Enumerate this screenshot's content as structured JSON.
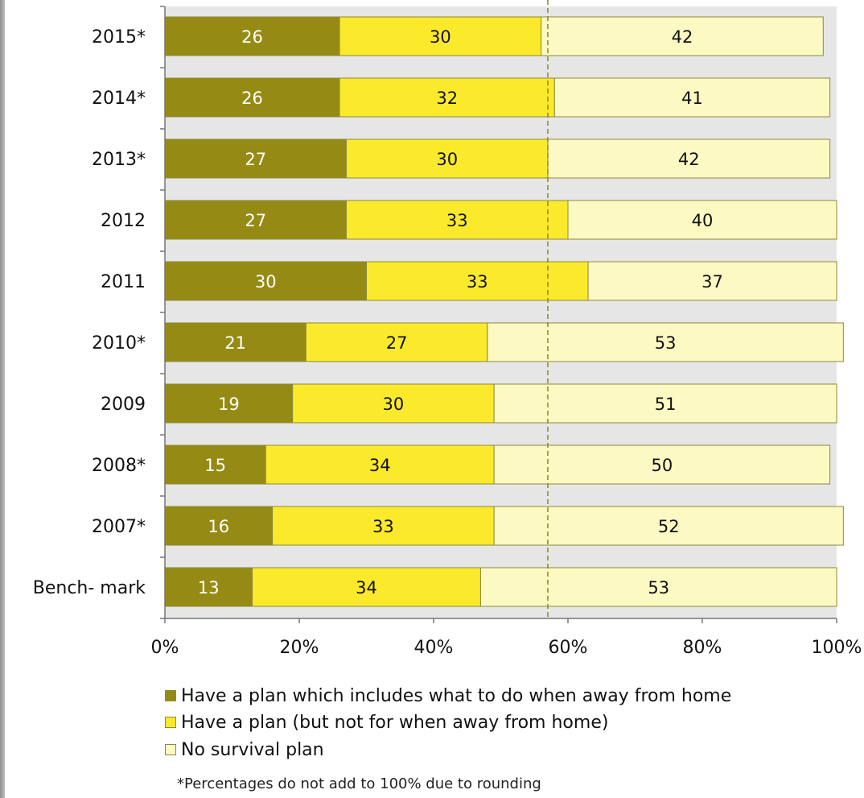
{
  "chart_data": {
    "type": "bar",
    "orientation": "horizontal",
    "stacked": true,
    "percent_axis": true,
    "categories": [
      "2015*",
      "2014*",
      "2013*",
      "2012",
      "2011",
      "2010*",
      "2009",
      "2008*",
      "2007*",
      "Bench- mark"
    ],
    "series": [
      {
        "name": "Have a plan which includes what to do when away from home",
        "color": "#958b14",
        "label_color": "#ffffff",
        "values": [
          26,
          26,
          27,
          27,
          30,
          21,
          19,
          15,
          16,
          13
        ]
      },
      {
        "name": "Have a plan (but not for when away from home)",
        "color": "#fbea2b",
        "label_color": "#111111",
        "values": [
          30,
          32,
          30,
          33,
          33,
          27,
          30,
          34,
          33,
          34
        ]
      },
      {
        "name": "No survival plan",
        "color": "#fdf9c2",
        "label_color": "#111111",
        "values": [
          42,
          41,
          42,
          40,
          37,
          53,
          51,
          50,
          52,
          53
        ]
      }
    ],
    "x_ticks": [
      "0%",
      "20%",
      "40%",
      "60%",
      "80%",
      "100%"
    ],
    "xlim": [
      0,
      100
    ],
    "reference_line": 57,
    "grid": false,
    "legend_position": "bottom",
    "plot_background": "#e6e6e6",
    "footnote": "*Percentages do not add to 100% due to rounding"
  }
}
